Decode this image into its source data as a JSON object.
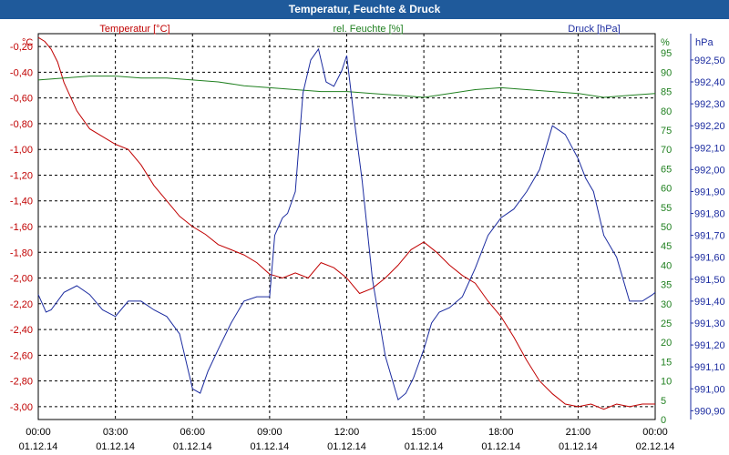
{
  "chart_data": {
    "type": "line",
    "title": "Temperatur, Feuchte & Druck",
    "grid": true,
    "x": {
      "ticks": [
        {
          "time": "00:00",
          "date": "01.12.14"
        },
        {
          "time": "03:00",
          "date": "01.12.14"
        },
        {
          "time": "06:00",
          "date": "01.12.14"
        },
        {
          "time": "09:00",
          "date": "01.12.14"
        },
        {
          "time": "12:00",
          "date": "01.12.14"
        },
        {
          "time": "15:00",
          "date": "01.12.14"
        },
        {
          "time": "18:00",
          "date": "01.12.14"
        },
        {
          "time": "21:00",
          "date": "01.12.14"
        },
        {
          "time": "00:00",
          "date": "02.12.14"
        }
      ],
      "range_hours": [
        0,
        24
      ]
    },
    "axes": {
      "temperature": {
        "unit": "°C",
        "range": [
          -3.1,
          -0.1
        ],
        "ticks": [
          "-0,20",
          "-0,40",
          "-0,60",
          "-0,80",
          "-1,00",
          "-1,20",
          "-1,40",
          "-1,60",
          "-1,80",
          "-2,00",
          "-2,20",
          "-2,40",
          "-2,60",
          "-2,80",
          "-3,00"
        ],
        "color": "#c00000"
      },
      "humidity": {
        "unit": "%",
        "range": [
          0,
          100
        ],
        "ticks": [
          "0",
          "5",
          "10",
          "15",
          "20",
          "25",
          "30",
          "35",
          "40",
          "45",
          "50",
          "55",
          "60",
          "65",
          "70",
          "75",
          "80",
          "85",
          "90",
          "95"
        ],
        "color": "#208020"
      },
      "pressure": {
        "unit": "hPa",
        "range": [
          990.86,
          992.62
        ],
        "ticks": [
          "990,90",
          "991,00",
          "991,10",
          "991,20",
          "991,30",
          "991,40",
          "991,50",
          "991,60",
          "991,70",
          "991,80",
          "991,90",
          "992,00",
          "992,10",
          "992,20",
          "992,30",
          "992,40",
          "992,50"
        ],
        "color": "#1c2ca0"
      }
    },
    "series": [
      {
        "name": "Temperatur [°C]",
        "axis": "temperature",
        "color": "#c00000",
        "x": [
          0,
          0.25,
          0.5,
          0.75,
          1,
          1.5,
          2,
          2.5,
          3,
          3.5,
          4,
          4.5,
          5,
          5.5,
          6,
          6.5,
          7,
          7.5,
          8,
          8.5,
          9,
          9.5,
          10,
          10.5,
          11,
          11.5,
          12,
          12.5,
          13,
          13.5,
          14,
          14.5,
          15,
          15.5,
          16,
          16.5,
          17,
          17.5,
          18,
          18.5,
          19,
          19.5,
          20,
          20.5,
          21,
          21.5,
          22,
          22.5,
          23,
          23.5,
          24
        ],
        "values": [
          -0.13,
          -0.16,
          -0.22,
          -0.32,
          -0.48,
          -0.7,
          -0.84,
          -0.9,
          -0.96,
          -1.0,
          -1.12,
          -1.28,
          -1.4,
          -1.52,
          -1.6,
          -1.66,
          -1.74,
          -1.78,
          -1.82,
          -1.88,
          -1.97,
          -2.0,
          -1.96,
          -2.0,
          -1.88,
          -1.92,
          -2.0,
          -2.12,
          -2.08,
          -2.0,
          -1.9,
          -1.78,
          -1.72,
          -1.8,
          -1.9,
          -1.98,
          -2.04,
          -2.18,
          -2.3,
          -2.46,
          -2.64,
          -2.8,
          -2.9,
          -2.98,
          -3.0,
          -2.98,
          -3.02,
          -2.98,
          -3.0,
          -2.98,
          -2.98
        ]
      },
      {
        "name": "rel. Feuchte [%]",
        "axis": "humidity",
        "color": "#208020",
        "x": [
          0,
          1,
          2,
          3,
          4,
          5,
          6,
          7,
          8,
          9,
          10,
          11,
          12,
          13,
          14,
          15,
          16,
          17,
          18,
          19,
          20,
          21,
          22,
          23,
          24
        ],
        "values": [
          88,
          88.5,
          89,
          89,
          88.5,
          88.5,
          88,
          87.5,
          86.5,
          86,
          85.5,
          85,
          85,
          84.5,
          84,
          83.5,
          84.5,
          85.5,
          86,
          85.5,
          85,
          84.5,
          83.5,
          84,
          84.5
        ]
      },
      {
        "name": "Druck [hPa]",
        "axis": "pressure",
        "color": "#1c2ca0",
        "x": [
          0,
          0.3,
          0.5,
          1,
          1.5,
          2,
          2.5,
          3,
          3.5,
          4,
          4.5,
          5,
          5.5,
          6,
          6.3,
          6.6,
          7,
          7.5,
          8,
          8.5,
          8.8,
          9,
          9.2,
          9.5,
          9.7,
          10,
          10.3,
          10.6,
          10.9,
          11.2,
          11.5,
          11.8,
          12,
          12.3,
          12.6,
          13,
          13.5,
          14,
          14.3,
          14.6,
          15,
          15.3,
          15.6,
          16,
          16.5,
          17,
          17.5,
          18,
          18.5,
          19,
          19.5,
          20,
          20.5,
          21,
          21.3,
          21.6,
          22,
          22.5,
          23,
          23.5,
          23.9,
          24
        ],
        "values": [
          991.43,
          991.35,
          991.36,
          991.44,
          991.47,
          991.43,
          991.36,
          991.33,
          991.4,
          991.4,
          991.36,
          991.33,
          991.25,
          991.0,
          990.98,
          991.08,
          991.18,
          991.3,
          991.4,
          991.42,
          991.42,
          991.42,
          991.7,
          991.78,
          991.8,
          991.9,
          992.35,
          992.5,
          992.55,
          992.4,
          992.38,
          992.45,
          992.52,
          992.22,
          991.95,
          991.5,
          991.15,
          990.95,
          990.98,
          991.05,
          991.18,
          991.3,
          991.35,
          991.37,
          991.42,
          991.55,
          991.7,
          991.78,
          991.82,
          991.9,
          992.0,
          992.2,
          992.16,
          992.05,
          991.96,
          991.9,
          991.7,
          991.6,
          991.4,
          991.4,
          991.43,
          991.44
        ]
      }
    ]
  }
}
